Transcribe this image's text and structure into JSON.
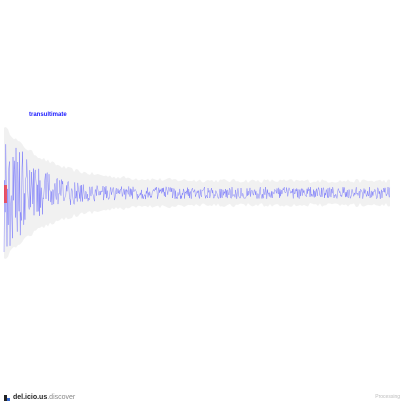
{
  "term_label": "transultimate",
  "footer": {
    "brand_name": "del.icio.us",
    "brand_suffix": ".discover",
    "credit": "Processing"
  },
  "colors": {
    "series": "#3b3bff",
    "envelope": "#e5e5e5",
    "highlight": "#ff2a2a",
    "label": "#1a1aff"
  }
}
